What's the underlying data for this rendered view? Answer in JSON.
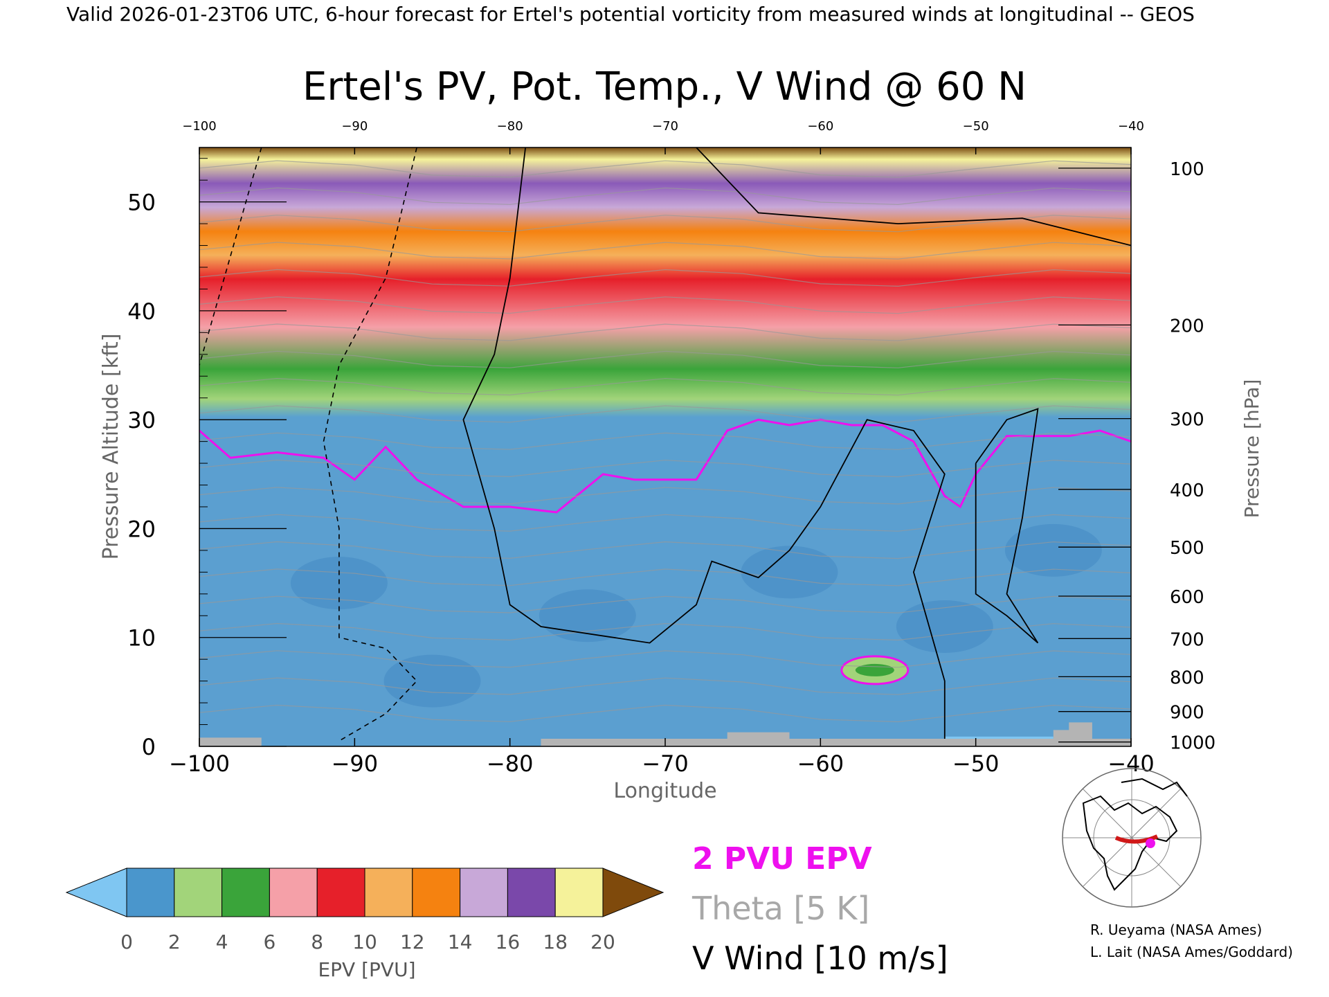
{
  "header": {
    "valid_line": "Valid 2026-01-23T06 UTC, 6-hour forecast for Ertel's potential vorticity from measured winds at longitudinal -- GEOS"
  },
  "chart_data": {
    "type": "heatmap",
    "title": "Ertel's PV, Pot. Temp., V Wind @ 60 N",
    "xlabel": "Longitude",
    "ylabel_left": "Pressure Altitude [kft]",
    "ylabel_right": "Pressure [hPa]",
    "xlim": [
      -100,
      -40
    ],
    "ylim": [
      0,
      55
    ],
    "x_ticks": [
      -100,
      -90,
      -80,
      -70,
      -60,
      -50,
      -40
    ],
    "x_tick_labels": [
      "−100",
      "−90",
      "−80",
      "−70",
      "−60",
      "−50",
      "−40"
    ],
    "x_top_tick_labels": [
      "−100",
      "−90",
      "−80",
      "−70",
      "−60",
      "−50",
      "−40"
    ],
    "y_ticks": [
      0,
      10,
      20,
      30,
      40,
      50
    ],
    "pressure_ticks": [
      {
        "hpa": 100,
        "kft": 53.1
      },
      {
        "hpa": 200,
        "kft": 38.7
      },
      {
        "hpa": 300,
        "kft": 30.1
      },
      {
        "hpa": 400,
        "kft": 23.6
      },
      {
        "hpa": 500,
        "kft": 18.3
      },
      {
        "hpa": 600,
        "kft": 13.8
      },
      {
        "hpa": 700,
        "kft": 9.9
      },
      {
        "hpa": 800,
        "kft": 6.4
      },
      {
        "hpa": 900,
        "kft": 3.2
      },
      {
        "hpa": 1000,
        "kft": 0.4
      }
    ],
    "pv_layers_kft": [
      {
        "pvu_from": 16,
        "pvu_to": 20,
        "top_kft": 55,
        "bottom_kft": 50
      },
      {
        "pvu_from": 12,
        "pvu_to": 16,
        "top_kft": 50,
        "bottom_kft": 45
      },
      {
        "pvu_from": 8,
        "pvu_to": 12,
        "top_kft": 45,
        "bottom_kft": 40
      },
      {
        "pvu_from": 4,
        "pvu_to": 8,
        "top_kft": 40,
        "bottom_kft": 33
      },
      {
        "pvu_from": 2,
        "pvu_to": 4,
        "top_kft": 33,
        "bottom_kft": 28
      }
    ],
    "tropopause_2pvu": {
      "lon": [
        -100,
        -98,
        -95,
        -92,
        -90,
        -88,
        -86,
        -83,
        -80,
        -77,
        -74,
        -72,
        -70,
        -68,
        -66,
        -64,
        -62,
        -60,
        -58,
        -56,
        -54,
        -52,
        -51,
        -50,
        -48,
        -46,
        -44,
        -42,
        -40
      ],
      "kft": [
        29,
        26.5,
        27,
        26.5,
        24.5,
        27.5,
        24.5,
        22,
        22,
        21.5,
        25,
        24.5,
        24.5,
        24.5,
        29,
        30,
        29.5,
        30,
        29.5,
        29.5,
        28,
        23,
        22,
        25,
        28.5,
        28.5,
        28.5,
        29,
        28
      ]
    },
    "vwind_contours_mps": [
      -10,
      0,
      10
    ],
    "theta_contours_K": [
      270,
      290,
      300,
      310,
      320,
      330,
      340,
      350,
      360,
      370,
      380,
      390,
      400,
      410,
      420
    ],
    "legend": [
      {
        "label": "2 PVU EPV",
        "color": "#ee10ee"
      },
      {
        "label": "Theta [5 K]",
        "color": "#a8a8a8"
      },
      {
        "label": "V Wind [10 m/s]",
        "color": "#000000"
      }
    ],
    "colorbar": {
      "label": "EPV [PVU]",
      "ticks": [
        0,
        2,
        4,
        6,
        8,
        10,
        12,
        14,
        16,
        18,
        20
      ],
      "under_color": "#7fc6f2",
      "over_color": "#7f4a0c",
      "colors": [
        "#4a96cc",
        "#a2d47a",
        "#3aa43a",
        "#f5a0a8",
        "#e6202a",
        "#f5b05a",
        "#f58210",
        "#c8a8d8",
        "#7a48aa",
        "#f5f29a"
      ]
    }
  },
  "credits": {
    "line1": "R. Ueyama (NASA Ames)",
    "line2": "L. Lait (NASA Ames/Goddard)"
  }
}
